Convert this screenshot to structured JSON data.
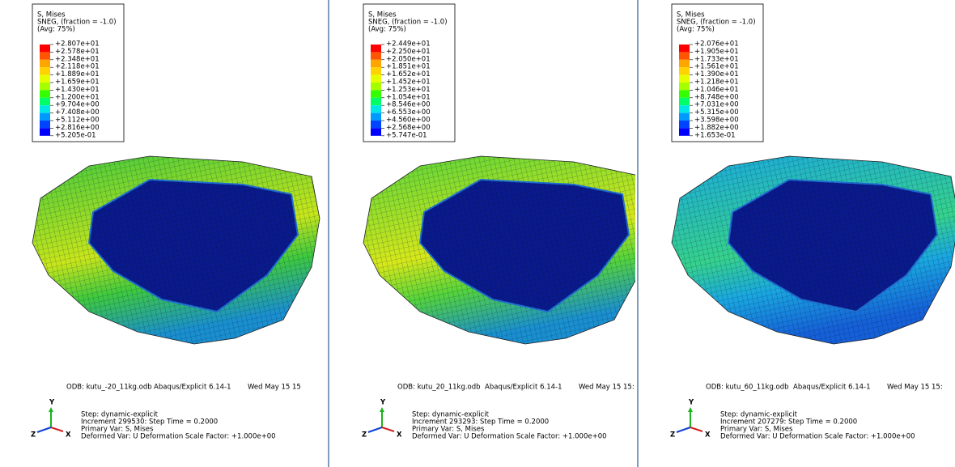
{
  "panels": [
    {
      "legend": {
        "lines": [
          "S, Mises",
          "SNEG, (fraction = -1.0)",
          "(Avg: 75%)"
        ],
        "values": [
          "+2.807e+01",
          "+2.578e+01",
          "+2.348e+01",
          "+2.118e+01",
          "+1.889e+01",
          "+1.659e+01",
          "+1.430e+01",
          "+1.200e+01",
          "+9.704e+00",
          "+7.408e+00",
          "+5.112e+00",
          "+2.816e+00",
          "+5.205e-01"
        ]
      },
      "footer": [
        "ODB: kutu_-20_11kg.odb",
        "Abaqus/Explicit 6.14-1",
        "Wed May 15 15"
      ],
      "step": [
        "Step: dynamic-explicit",
        "Increment    299530: Step Time =    0.2000",
        "Primary Var: S, Mises",
        "Deformed Var: U   Deformation Scale Factor: +1.000e+00"
      ],
      "axes": [
        "Y",
        "Z",
        "X"
      ]
    },
    {
      "legend": {
        "lines": [
          "S, Mises",
          "SNEG, (fraction = -1.0)",
          "(Avg: 75%)"
        ],
        "values": [
          "+2.449e+01",
          "+2.250e+01",
          "+2.050e+01",
          "+1.851e+01",
          "+1.652e+01",
          "+1.452e+01",
          "+1.253e+01",
          "+1.054e+01",
          "+8.546e+00",
          "+6.553e+00",
          "+4.560e+00",
          "+2.568e+00",
          "+5.747e-01"
        ]
      },
      "footer": [
        "ODB: kutu_20_11kg.odb",
        "Abaqus/Explicit 6.14-1",
        "Wed May 15 15:"
      ],
      "step": [
        "Step: dynamic-explicit",
        "Increment    293293: Step Time =    0.2000",
        "Primary Var: S, Mises",
        "Deformed Var: U   Deformation Scale Factor: +1.000e+00"
      ],
      "axes": [
        "Y",
        "Z",
        "X"
      ]
    },
    {
      "legend": {
        "lines": [
          "S, Mises",
          "SNEG, (fraction = -1.0)",
          "(Avg: 75%)"
        ],
        "values": [
          "+2.076e+01",
          "+1.905e+01",
          "+1.733e+01",
          "+1.561e+01",
          "+1.390e+01",
          "+1.218e+01",
          "+1.046e+01",
          "+8.748e+00",
          "+7.031e+00",
          "+5.315e+00",
          "+3.598e+00",
          "+1.882e+00",
          "+1.653e-01"
        ]
      },
      "footer": [
        "ODB: kutu_60_11kg.odb",
        "Abaqus/Explicit 6.14-1",
        "Wed May 15 15:"
      ],
      "step": [
        "Step: dynamic-explicit",
        "Increment    207279: Step Time =    0.2000",
        "Primary Var: S, Mises",
        "Deformed Var: U   Deformation Scale Factor: +1.000e+00"
      ],
      "axes": [
        "Y",
        "Z",
        "X"
      ]
    }
  ]
}
